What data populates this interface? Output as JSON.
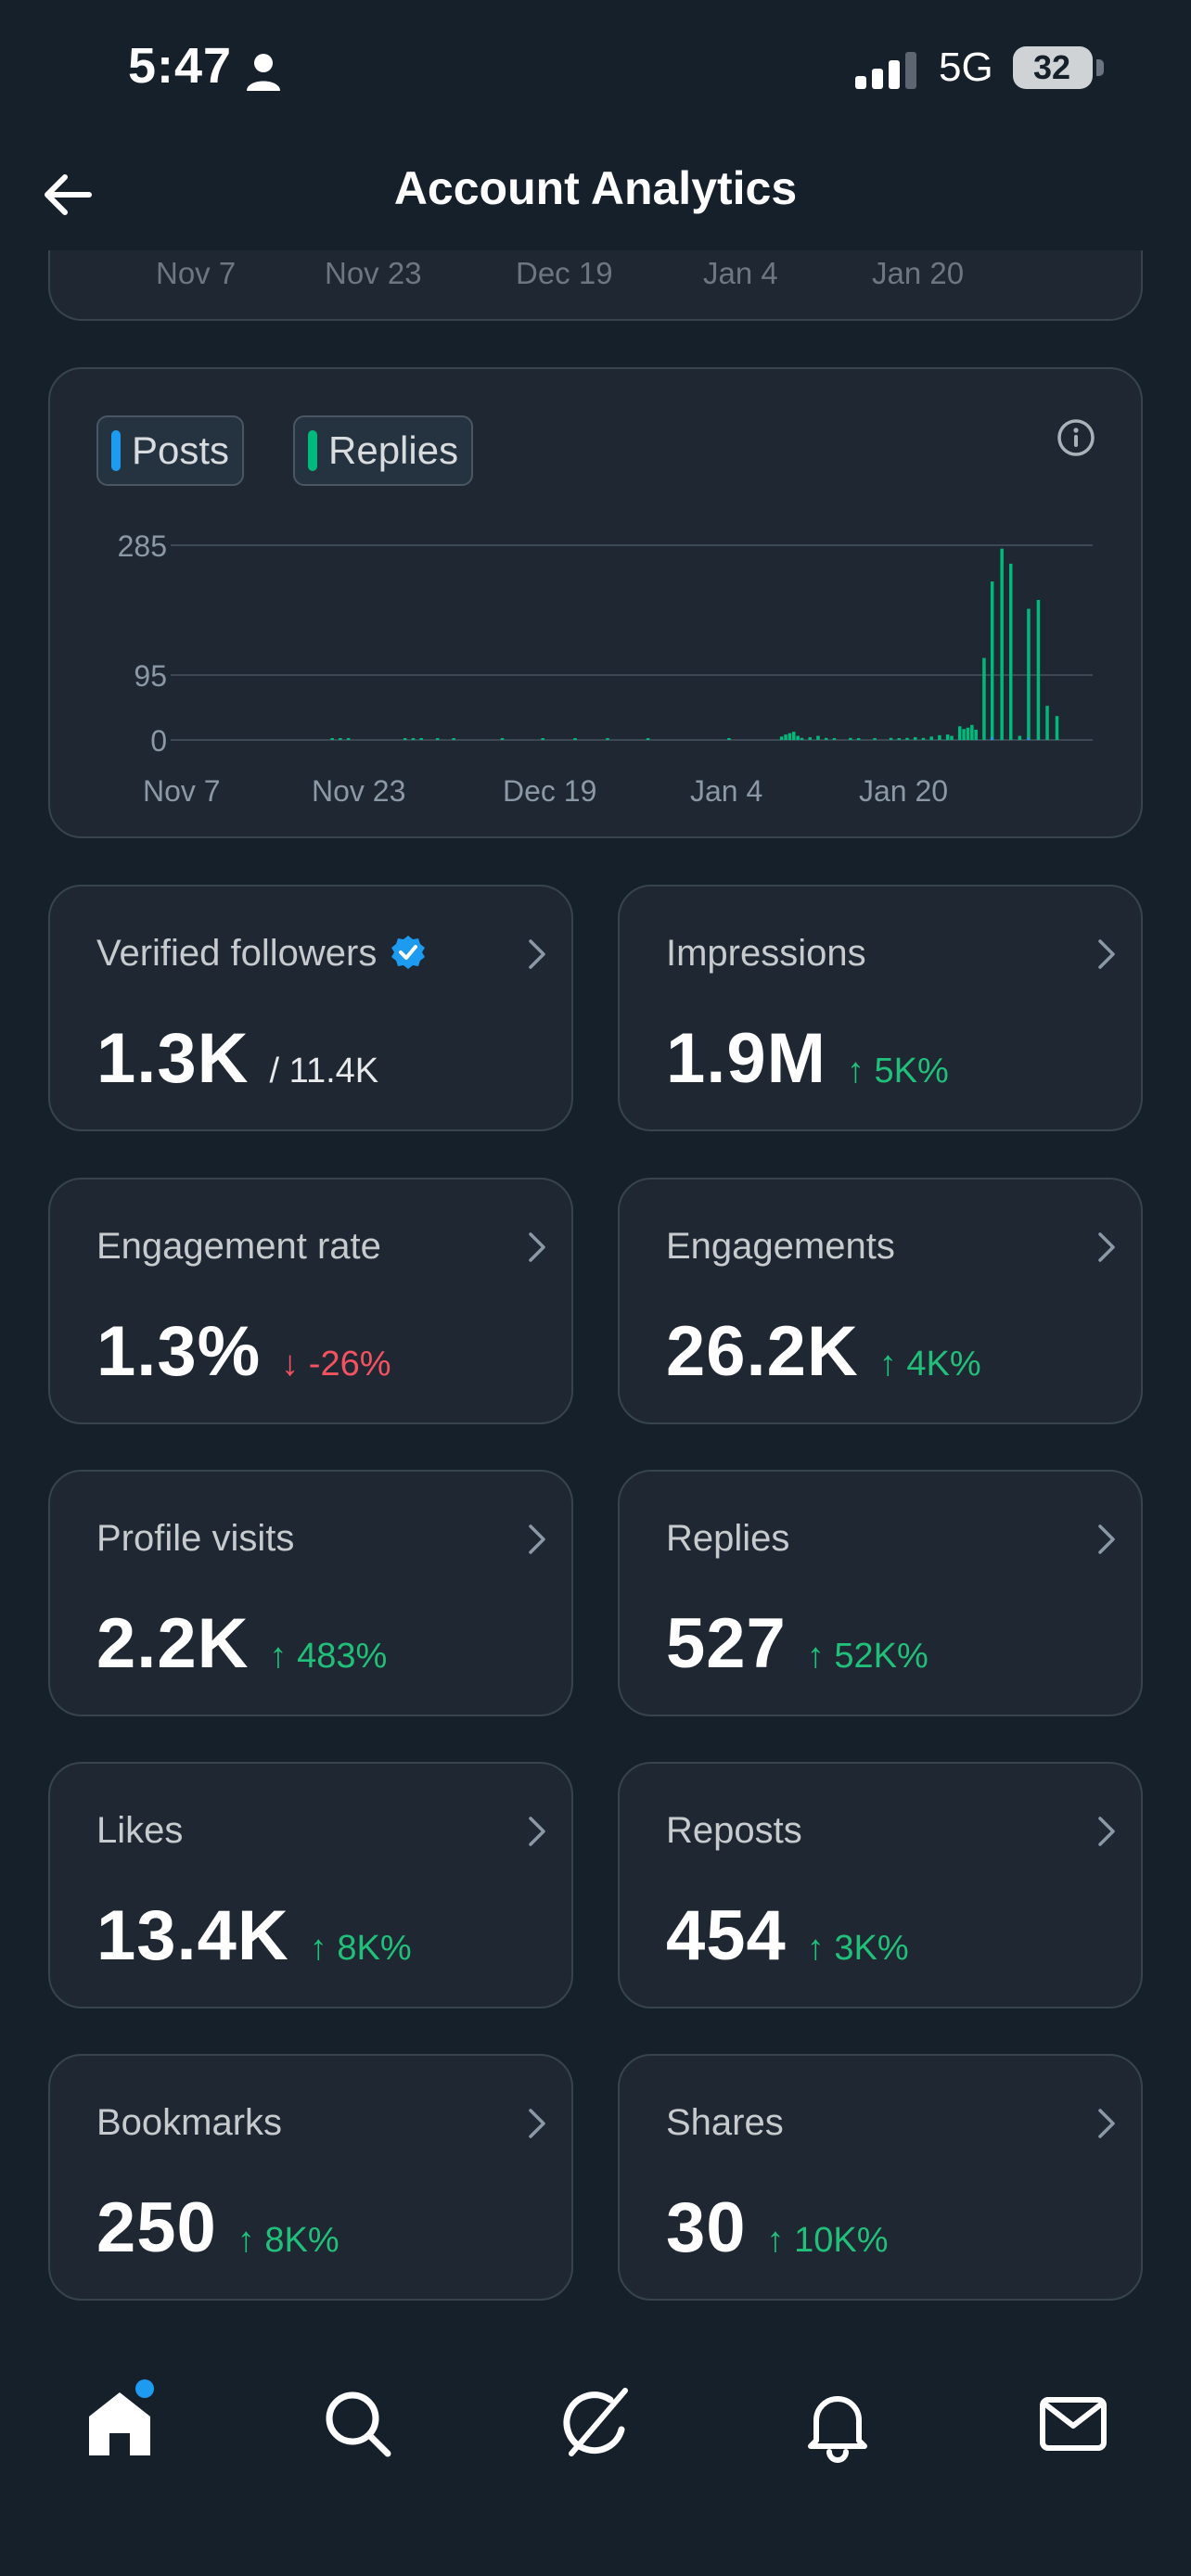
{
  "status_bar": {
    "time": "5:47",
    "network": "5G",
    "battery": "32"
  },
  "header": {
    "title": "Account Analytics"
  },
  "previous_chart": {
    "x_ticks": [
      "Nov 7",
      "Nov 23",
      "Dec 19",
      "Jan 4",
      "Jan 20"
    ]
  },
  "chart": {
    "legend": [
      {
        "label": "Posts",
        "color": "#1d9bf0"
      },
      {
        "label": "Replies",
        "color": "#00ba7c"
      }
    ]
  },
  "chart_data": {
    "type": "bar",
    "y_ticks": [
      "285",
      "95",
      "0"
    ],
    "x_ticks": [
      "Nov 7",
      "Nov 23",
      "Dec 19",
      "Jan 4",
      "Jan 20"
    ],
    "ylim": [
      0,
      285
    ],
    "grid": true,
    "legend_placement": "top-left",
    "series": [
      {
        "name": "Replies",
        "values": [
          {
            "x": 0.17,
            "y": 1
          },
          {
            "x": 0.18,
            "y": 1
          },
          {
            "x": 0.19,
            "y": 1
          },
          {
            "x": 0.26,
            "y": 1
          },
          {
            "x": 0.27,
            "y": 1
          },
          {
            "x": 0.28,
            "y": 1
          },
          {
            "x": 0.3,
            "y": 1
          },
          {
            "x": 0.32,
            "y": 1
          },
          {
            "x": 0.38,
            "y": 1
          },
          {
            "x": 0.43,
            "y": 1
          },
          {
            "x": 0.47,
            "y": 1
          },
          {
            "x": 0.51,
            "y": 1
          },
          {
            "x": 0.56,
            "y": 1
          },
          {
            "x": 0.66,
            "y": 2
          },
          {
            "x": 0.725,
            "y": 5
          },
          {
            "x": 0.73,
            "y": 8
          },
          {
            "x": 0.735,
            "y": 10
          },
          {
            "x": 0.74,
            "y": 12
          },
          {
            "x": 0.745,
            "y": 6
          },
          {
            "x": 0.75,
            "y": 3
          },
          {
            "x": 0.76,
            "y": 4
          },
          {
            "x": 0.77,
            "y": 6
          },
          {
            "x": 0.78,
            "y": 3
          },
          {
            "x": 0.79,
            "y": 2
          },
          {
            "x": 0.81,
            "y": 3
          },
          {
            "x": 0.82,
            "y": 2
          },
          {
            "x": 0.84,
            "y": 2
          },
          {
            "x": 0.86,
            "y": 3
          },
          {
            "x": 0.87,
            "y": 2
          },
          {
            "x": 0.88,
            "y": 3
          },
          {
            "x": 0.89,
            "y": 4
          },
          {
            "x": 0.9,
            "y": 3
          },
          {
            "x": 0.91,
            "y": 5
          },
          {
            "x": 0.92,
            "y": 7
          },
          {
            "x": 0.93,
            "y": 8
          },
          {
            "x": 0.935,
            "y": 6
          },
          {
            "x": 0.945,
            "y": 20
          },
          {
            "x": 0.95,
            "y": 16
          },
          {
            "x": 0.955,
            "y": 18
          },
          {
            "x": 0.96,
            "y": 22
          },
          {
            "x": 0.965,
            "y": 15
          },
          {
            "x": 0.975,
            "y": 120
          },
          {
            "x": 0.985,
            "y": 232
          },
          {
            "x": 0.997,
            "y": 280
          },
          {
            "x": 1.008,
            "y": 258
          },
          {
            "x": 1.019,
            "y": 6
          },
          {
            "x": 1.03,
            "y": 192
          },
          {
            "x": 1.042,
            "y": 205
          },
          {
            "x": 1.053,
            "y": 50
          },
          {
            "x": 1.065,
            "y": 35
          }
        ]
      },
      {
        "name": "Posts",
        "values": [
          {
            "x": 0.985,
            "y": 4
          },
          {
            "x": 1.03,
            "y": 3
          }
        ]
      }
    ]
  },
  "metrics": [
    {
      "label": "Verified followers",
      "value": "1.3K",
      "sub": "/ 11.4K",
      "verified": true
    },
    {
      "label": "Impressions",
      "value": "1.9M",
      "change": "↑ 5K%",
      "direction": "up"
    },
    {
      "label": "Engagement rate",
      "value": "1.3%",
      "change": "↓ -26%",
      "direction": "down"
    },
    {
      "label": "Engagements",
      "value": "26.2K",
      "change": "↑ 4K%",
      "direction": "up"
    },
    {
      "label": "Profile visits",
      "value": "2.2K",
      "change": "↑ 483%",
      "direction": "up"
    },
    {
      "label": "Replies",
      "value": "527",
      "change": "↑ 52K%",
      "direction": "up"
    },
    {
      "label": "Likes",
      "value": "13.4K",
      "change": "↑ 8K%",
      "direction": "up"
    },
    {
      "label": "Reposts",
      "value": "454",
      "change": "↑ 3K%",
      "direction": "up"
    },
    {
      "label": "Bookmarks",
      "value": "250",
      "change": "↑ 8K%",
      "direction": "up"
    },
    {
      "label": "Shares",
      "value": "30",
      "change": "↑ 10K%",
      "direction": "up"
    }
  ],
  "icons": {
    "back": "arrow-left-icon",
    "info": "info-icon",
    "chevron": "chevron-right-icon",
    "verified": "verified-badge-icon",
    "nav": [
      "home-icon",
      "search-icon",
      "grok-icon",
      "bell-icon",
      "mail-icon"
    ]
  },
  "colors": {
    "background": "#15202b",
    "card": "#1e2732",
    "border": "#38444d",
    "accent": "#1d9bf0",
    "up": "#21c07a",
    "down": "#f4525f"
  }
}
